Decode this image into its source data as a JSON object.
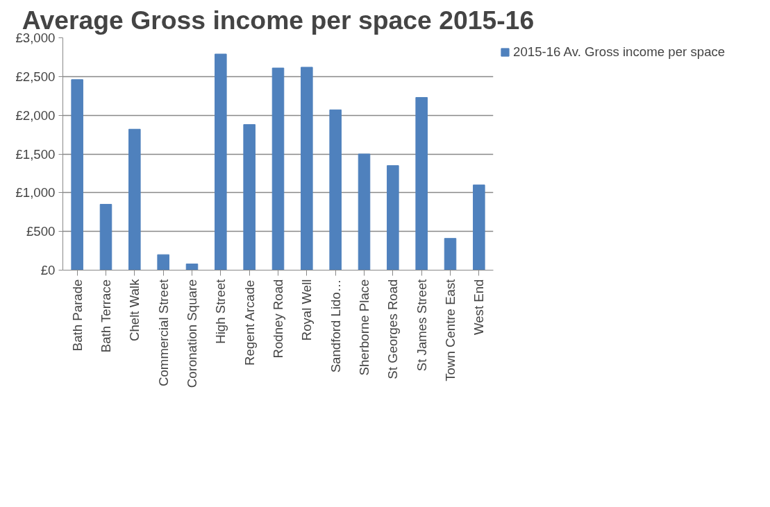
{
  "chart_data": {
    "type": "bar",
    "title": "Average Gross income per space 2015-16",
    "categories": [
      "Bath Parade",
      "Bath Terrace",
      "Chelt Walk",
      "Commercial Street",
      "Coronation Square",
      "High Street",
      "Regent Arcade",
      "Rodney Road",
      "Royal Well",
      "Sandford Lido…",
      "Sherborne Place",
      "St Georges Road",
      "St James Street",
      "Town Centre East",
      "West End"
    ],
    "series": [
      {
        "name": "2015-16 Av. Gross income per space",
        "color": "#4f81bd",
        "values": [
          2460,
          850,
          1820,
          200,
          80,
          2790,
          1880,
          2610,
          2620,
          2070,
          1500,
          1350,
          2230,
          410,
          1100
        ]
      }
    ],
    "ylim": [
      0,
      3000
    ],
    "yticks": [
      {
        "value": 0,
        "label": "£0"
      },
      {
        "value": 500,
        "label": "£500"
      },
      {
        "value": 1000,
        "label": "£1,000"
      },
      {
        "value": 1500,
        "label": "£1,500"
      },
      {
        "value": 2000,
        "label": "£2,000"
      },
      {
        "value": 2500,
        "label": "£2,500"
      },
      {
        "value": 3000,
        "label": "£3,000"
      }
    ],
    "grid": "y",
    "legend": "right"
  }
}
